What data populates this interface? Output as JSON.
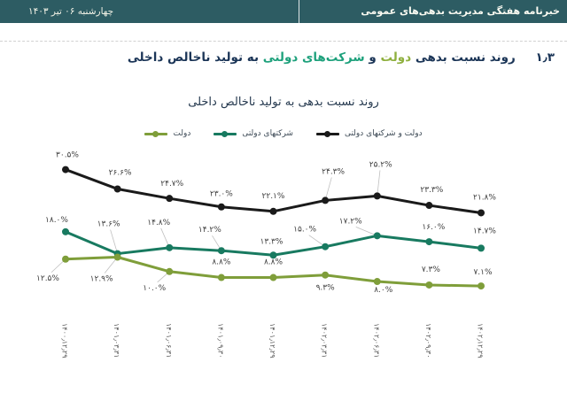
{
  "header": {
    "title": "خبرنامه هفتگی مدیریت بدهی‌های عمومی",
    "date": "چهارشنبه ۰۶ تیر ۱۴۰۳",
    "bg_color": "#2d5c63"
  },
  "section_title": {
    "number": "۱٫۳",
    "part1": "روند نسبت بدهی",
    "gov_word": "دولت",
    "conjunction": "و",
    "soe_word": "شرکت‌های دولتی",
    "part2": "به تولید ناخالص داخلی",
    "text_color": "#1b3557",
    "gov_color": "#8fb03f",
    "soe_color": "#1ea17c"
  },
  "chart_data": {
    "type": "line",
    "title": "روند نسبت بدهی به تولید ناخالص داخلی",
    "categories": [
      "۱۴۰۰٫۱۲٫۲۹",
      "۱۴۰۱٫۰۳٫۳۱",
      "۱۴۰۱٫۰۶٫۳۱",
      "۱۴۰۱٫۰۹٫۳۰",
      "۱۴۰۱٫۱۲٫۲۹",
      "۱۴۰۲٫۰۳٫۳۱",
      "۱۴۰۲٫۰۶٫۳۱",
      "۱۴۰۲٫۰۹٫۳۰",
      "۱۴۰۲٫۱۲٫۲۹"
    ],
    "series": [
      {
        "name": "دولت و شرکتهای دولتی",
        "color": "#1a1a1a",
        "values": [
          30.5,
          26.6,
          24.7,
          23.0,
          22.1,
          24.3,
          25.2,
          23.3,
          21.8
        ]
      },
      {
        "name": "شرکتهای دولتی",
        "color": "#187a60",
        "values": [
          18.0,
          13.6,
          14.8,
          14.2,
          13.3,
          15.0,
          17.2,
          16.0,
          14.7
        ]
      },
      {
        "name": "دولت",
        "color": "#7f9e3a",
        "values": [
          12.5,
          12.9,
          10.0,
          8.8,
          8.8,
          9.3,
          8.0,
          7.3,
          7.1
        ]
      }
    ],
    "unit": "%",
    "data_labels": true,
    "grid": false,
    "legend_position": "top",
    "ylim": [
      5,
      33
    ],
    "label_color": "#404040",
    "axis_label_color": "#595959",
    "leader_line_color": "#bfbfbf"
  }
}
